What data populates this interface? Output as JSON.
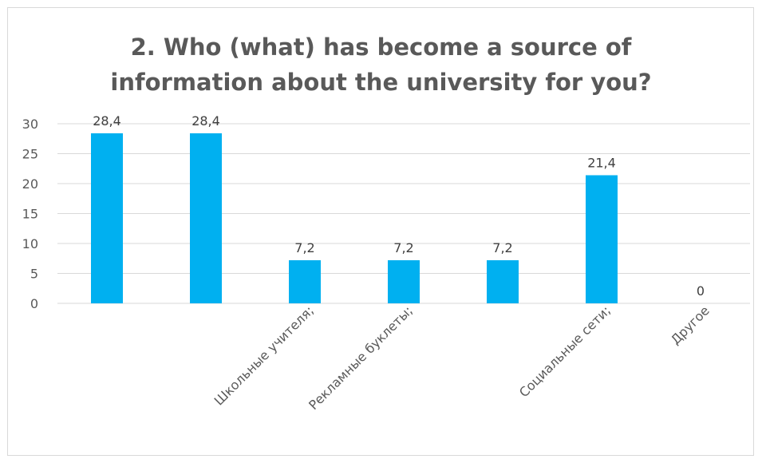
{
  "chart_data": {
    "type": "bar",
    "title_lines": [
      "2. Who (what) has become a source of",
      "information about the university for you?"
    ],
    "categories": [
      "",
      "",
      "Школьные учителя;",
      "Рекламные буклеты;",
      "",
      "Социальные сети;",
      "Другое"
    ],
    "values": [
      28.4,
      28.4,
      7.2,
      7.2,
      7.2,
      21.4,
      0
    ],
    "value_labels": [
      "28,4",
      "28,4",
      "7,2",
      "7,2",
      "7,2",
      "21,4",
      "0"
    ],
    "yticks": [
      0,
      5,
      10,
      15,
      20,
      25,
      30
    ],
    "ylim": [
      0,
      30
    ],
    "grid": true,
    "legend": "none",
    "bar_color": "#00b0f0",
    "grid_color": "#d9d9d9"
  }
}
